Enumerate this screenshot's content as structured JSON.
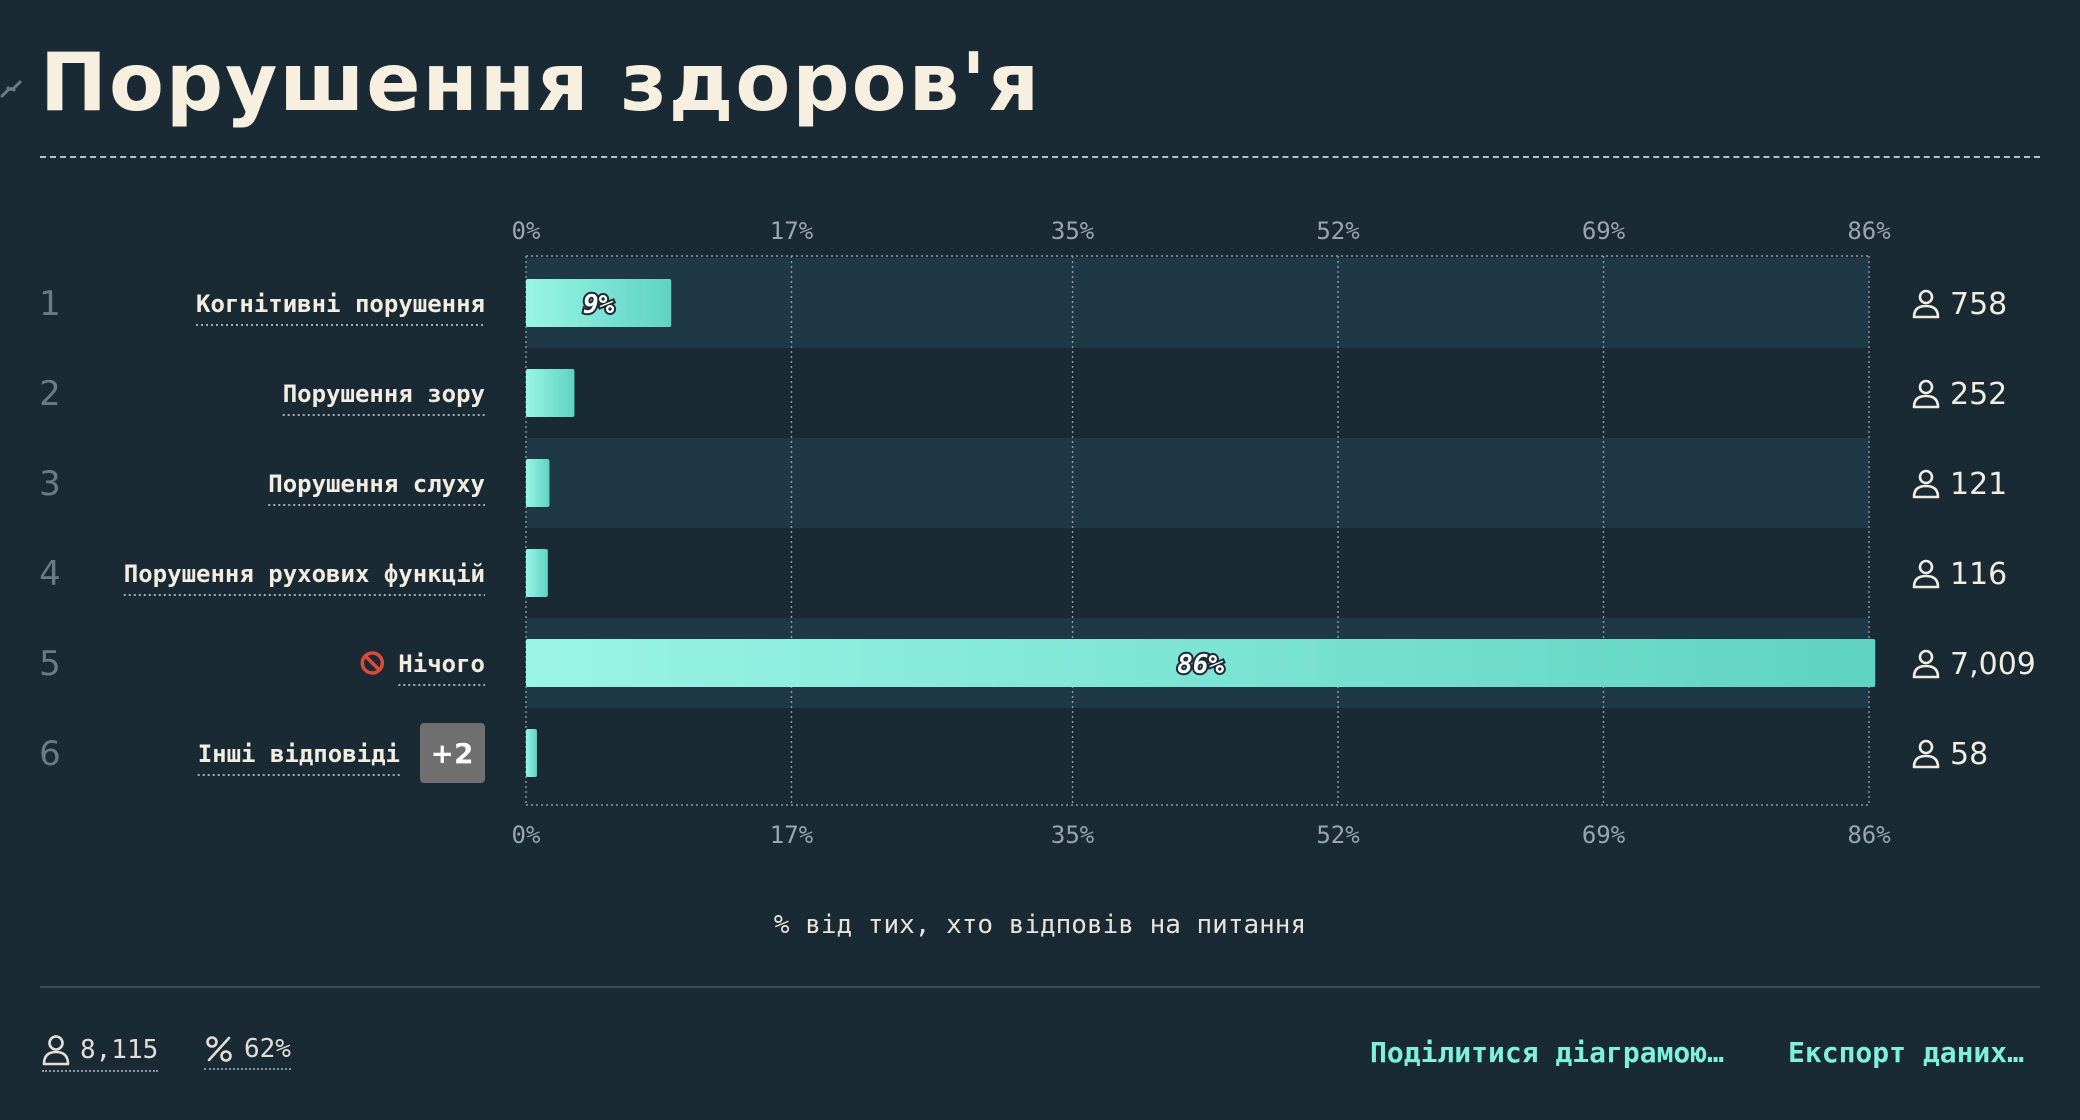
{
  "title": "Порушення здоров'я",
  "axis_label": "% від тих, хто відповів на питання",
  "footer": {
    "respondents": "8,115",
    "response_rate": "62%",
    "share_label": "Поділитися діаграмою…",
    "export_label": "Експорт даних…"
  },
  "colors": {
    "background": "#1a2a35",
    "band": "#1f3846",
    "bar_start": "#9af5e6",
    "bar_end": "#5fd3c2",
    "accent_text": "#7ff0dc"
  },
  "chart_data": {
    "type": "bar",
    "orientation": "horizontal",
    "xlim": [
      0,
      86
    ],
    "ticks": [
      "0%",
      "17%",
      "35%",
      "52%",
      "69%",
      "86%"
    ],
    "tick_values": [
      0,
      17,
      35,
      52,
      69,
      86
    ],
    "grid": true,
    "rows": [
      {
        "rank": "1",
        "label": "Когнітивні порушення",
        "percent": 9.3,
        "count": "758",
        "bar_label": "9%",
        "icon": "",
        "badge": ""
      },
      {
        "rank": "2",
        "label": "Порушення зору",
        "percent": 3.1,
        "count": "252",
        "bar_label": "",
        "icon": "",
        "badge": ""
      },
      {
        "rank": "3",
        "label": "Порушення слуху",
        "percent": 1.5,
        "count": "121",
        "bar_label": "",
        "icon": "",
        "badge": ""
      },
      {
        "rank": "4",
        "label": "Порушення рухових функцій",
        "percent": 1.4,
        "count": "116",
        "bar_label": "",
        "icon": "",
        "badge": ""
      },
      {
        "rank": "5",
        "label": "Нічого",
        "percent": 86.4,
        "count": "7,009",
        "bar_label": "86%",
        "icon": "prohibited-icon",
        "badge": ""
      },
      {
        "rank": "6",
        "label": "Інші відповіді",
        "percent": 0.7,
        "count": "58",
        "bar_label": "",
        "icon": "",
        "badge": "+2"
      }
    ]
  }
}
